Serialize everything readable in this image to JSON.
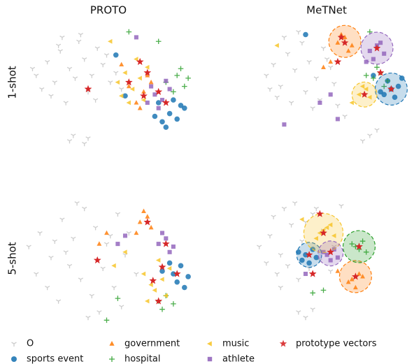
{
  "columns": [
    "PROTO",
    "MeTNet"
  ],
  "rows": [
    "1-shot",
    "5-shot"
  ],
  "legend": [
    {
      "name": "O",
      "color": "#c8c8c8",
      "marker": "tri_down"
    },
    {
      "name": "sports event",
      "color": "#1f77b4",
      "marker": "circle"
    },
    {
      "name": "government",
      "color": "#ff7f0e",
      "marker": "triangle_up"
    },
    {
      "name": "hospital",
      "color": "#2ca02c",
      "marker": "plus"
    },
    {
      "name": "music",
      "color": "#f7c52a",
      "marker": "triangle_left"
    },
    {
      "name": "athlete",
      "color": "#9467bd",
      "marker": "square"
    },
    {
      "name": "prototype vectors",
      "color": "#d62728",
      "marker": "star"
    }
  ],
  "chart_data": [
    {
      "type": "scatter",
      "xlim": [
        0,
        100
      ],
      "ylim": [
        0,
        100
      ],
      "series": [
        {
          "x": [
            12,
            18,
            22,
            25,
            30,
            35,
            38,
            42,
            45,
            48,
            15,
            20,
            28,
            33,
            40,
            50,
            55,
            26,
            36,
            44,
            52,
            30,
            38,
            32,
            40,
            58,
            10,
            24
          ],
          "y": [
            60,
            70,
            55,
            78,
            65,
            85,
            72,
            60,
            80,
            68,
            50,
            45,
            40,
            58,
            48,
            75,
            62,
            88,
            90,
            42,
            55,
            12,
            10,
            16,
            14,
            50,
            65,
            82
          ]
        },
        {
          "x": [
            76,
            80,
            84,
            88,
            92,
            78,
            86,
            90,
            82,
            60,
            55
          ],
          "y": [
            30,
            26,
            32,
            28,
            36,
            40,
            42,
            38,
            22,
            45,
            75
          ]
        },
        {
          "x": [
            66,
            70,
            74,
            62,
            68,
            72,
            58
          ],
          "y": [
            40,
            48,
            55,
            52,
            36,
            60,
            68
          ]
        },
        {
          "x": [
            82,
            88,
            92,
            90,
            86,
            94,
            62,
            78
          ],
          "y": [
            55,
            60,
            52,
            65,
            48,
            58,
            92,
            85
          ]
        },
        {
          "x": [
            56,
            60,
            64,
            68,
            72,
            58,
            66,
            70,
            62,
            52
          ],
          "y": [
            55,
            62,
            50,
            58,
            66,
            45,
            72,
            42,
            40,
            85
          ]
        },
        {
          "x": [
            72,
            76,
            80,
            84,
            78,
            74,
            82,
            66
          ],
          "y": [
            40,
            46,
            42,
            50,
            36,
            52,
            56,
            88
          ]
        },
        {
          "x": [
            40,
            72,
            78,
            70,
            82,
            62,
            68
          ],
          "y": [
            50,
            62,
            48,
            45,
            40,
            55,
            70
          ]
        }
      ]
    },
    {
      "type": "scatter",
      "xlim": [
        0,
        100
      ],
      "ylim": [
        0,
        100
      ],
      "series": [
        {
          "x": [
            18,
            22,
            26,
            30,
            34,
            38,
            42,
            46,
            50,
            54,
            24,
            32,
            40,
            48,
            56,
            28,
            36,
            44,
            52,
            20,
            76,
            80,
            72,
            58,
            62
          ],
          "y": [
            60,
            68,
            52,
            76,
            64,
            84,
            70,
            58,
            80,
            66,
            44,
            40,
            48,
            42,
            54,
            88,
            92,
            36,
            72,
            50,
            16,
            20,
            12,
            38,
            30
          ]
        },
        {
          "x": [
            84,
            88,
            92,
            86,
            90,
            82,
            94,
            78,
            40
          ],
          "y": [
            46,
            50,
            52,
            56,
            44,
            48,
            58,
            60,
            90
          ],
          "circle": {
            "x": 88,
            "y": 50,
            "r": 9
          }
        },
        {
          "x": [
            58,
            62,
            66,
            64,
            60,
            54,
            50
          ],
          "y": [
            84,
            88,
            82,
            78,
            90,
            70,
            66
          ],
          "circle": {
            "x": 62,
            "y": 85,
            "r": 9
          }
        },
        {
          "x": [
            78,
            82,
            86,
            80,
            84,
            74,
            76
          ],
          "y": [
            58,
            62,
            56,
            66,
            52,
            60,
            92
          ]
        },
        {
          "x": [
            70,
            74,
            76,
            72,
            66,
            24
          ],
          "y": [
            46,
            50,
            44,
            52,
            40,
            82
          ],
          "circle": {
            "x": 73,
            "y": 46,
            "r": 7
          }
        },
        {
          "x": [
            76,
            80,
            84,
            78,
            82,
            74,
            54,
            48,
            58,
            28
          ],
          "y": [
            78,
            82,
            76,
            72,
            84,
            70,
            46,
            40,
            28,
            24
          ],
          "circle": {
            "x": 80,
            "y": 80,
            "r": 9
          }
        },
        {
          "x": [
            62,
            80,
            73,
            88,
            82,
            58,
            60
          ],
          "y": [
            84,
            80,
            46,
            50,
            62,
            70,
            88
          ]
        }
      ]
    },
    {
      "type": "scatter",
      "xlim": [
        0,
        100
      ],
      "ylim": [
        0,
        100
      ],
      "series": [
        {
          "x": [
            8,
            14,
            20,
            26,
            32,
            38,
            44,
            50,
            56,
            62,
            12,
            18,
            24,
            30,
            36,
            42,
            48,
            54,
            60,
            66,
            22,
            34,
            46,
            58,
            40,
            28,
            52
          ],
          "y": [
            60,
            70,
            52,
            80,
            66,
            88,
            74,
            62,
            84,
            70,
            40,
            30,
            20,
            46,
            36,
            24,
            44,
            30,
            54,
            40,
            64,
            92,
            12,
            16,
            8,
            56,
            68
          ]
        },
        {
          "x": [
            86,
            90,
            94,
            88,
            84,
            92,
            80
          ],
          "y": [
            40,
            46,
            38,
            34,
            48,
            30,
            42
          ]
        },
        {
          "x": [
            68,
            72,
            74,
            70,
            66,
            50,
            46
          ],
          "y": [
            78,
            82,
            74,
            86,
            70,
            70,
            62
          ]
        },
        {
          "x": [
            78,
            82,
            86,
            80,
            50,
            56
          ],
          "y": [
            20,
            24,
            18,
            14,
            6,
            22
          ]
        },
        {
          "x": [
            72,
            76,
            80,
            84,
            78,
            74,
            82,
            70,
            60,
            54
          ],
          "y": [
            20,
            28,
            36,
            44,
            50,
            32,
            24,
            40,
            56,
            46
          ]
        },
        {
          "x": [
            78,
            82,
            86,
            80,
            84,
            60,
            56
          ],
          "y": [
            62,
            66,
            60,
            70,
            56,
            68,
            62
          ]
        },
        {
          "x": [
            45,
            72,
            82,
            80,
            78,
            88,
            75
          ],
          "y": [
            50,
            78,
            62,
            45,
            20,
            40,
            35
          ]
        }
      ]
    },
    {
      "type": "scatter",
      "xlim": [
        0,
        100
      ],
      "ylim": [
        0,
        100
      ],
      "series": [
        {
          "x": [
            14,
            20,
            26,
            32,
            38,
            44,
            50,
            56,
            18,
            24,
            30,
            36,
            42,
            48,
            54,
            22,
            28,
            34,
            40,
            46,
            36,
            40,
            44,
            60,
            26
          ],
          "y": [
            60,
            68,
            54,
            76,
            64,
            84,
            72,
            60,
            48,
            40,
            46,
            36,
            44,
            50,
            42,
            82,
            88,
            92,
            78,
            88,
            12,
            8,
            14,
            90,
            30
          ]
        },
        {
          "x": [
            40,
            44,
            38,
            46,
            42,
            36
          ],
          "y": [
            54,
            58,
            50,
            52,
            48,
            56
          ],
          "circle": {
            "x": 42,
            "y": 54,
            "r": 7
          }
        },
        {
          "x": [
            66,
            70,
            64,
            72,
            68,
            58
          ],
          "y": [
            36,
            40,
            34,
            38,
            30,
            42
          ],
          "circle": {
            "x": 68,
            "y": 38,
            "r": 9
          }
        },
        {
          "x": [
            68,
            72,
            74,
            70,
            66,
            50,
            44
          ],
          "y": [
            60,
            64,
            56,
            58,
            62,
            28,
            26
          ],
          "circle": {
            "x": 70,
            "y": 60,
            "r": 9
          }
        },
        {
          "x": [
            48,
            52,
            56,
            46,
            54,
            50,
            38
          ],
          "y": [
            70,
            74,
            68,
            66,
            76,
            72,
            80
          ],
          "circle": {
            "x": 50,
            "y": 70,
            "r": 11
          }
        },
        {
          "x": [
            52,
            56,
            58,
            54,
            50,
            40
          ],
          "y": [
            54,
            58,
            52,
            50,
            56,
            40
          ],
          "circle": {
            "x": 54,
            "y": 55,
            "r": 7
          }
        },
        {
          "x": [
            50,
            54,
            42,
            70,
            68,
            44,
            48
          ],
          "y": [
            70,
            56,
            54,
            60,
            38,
            40,
            84
          ]
        }
      ]
    }
  ]
}
